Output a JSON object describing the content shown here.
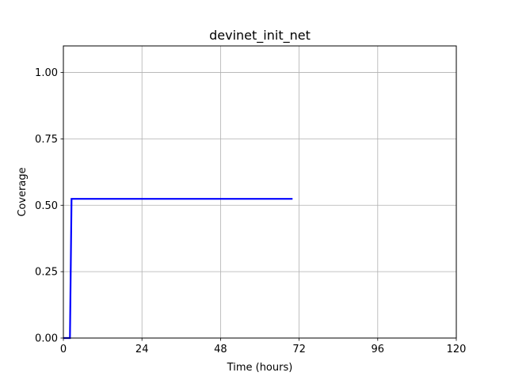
{
  "chart_data": {
    "type": "line",
    "title": "devinet_init_net",
    "xlabel": "Time (hours)",
    "ylabel": "Coverage",
    "xlim": [
      0,
      120
    ],
    "ylim": [
      0,
      1.1
    ],
    "xticks": [
      0,
      24,
      48,
      72,
      96,
      120
    ],
    "xtick_labels": [
      "0",
      "24",
      "48",
      "72",
      "96",
      "120"
    ],
    "yticks": [
      0,
      0.25,
      0.5,
      0.75,
      1.0
    ],
    "ytick_labels": [
      "0.00",
      "0.25",
      "0.50",
      "0.75",
      "1.00"
    ],
    "grid": true,
    "series": [
      {
        "color": "#0000ff",
        "x": [
          0,
          2,
          2.5,
          70
        ],
        "y": [
          0,
          0,
          0.524,
          0.524
        ]
      }
    ]
  }
}
